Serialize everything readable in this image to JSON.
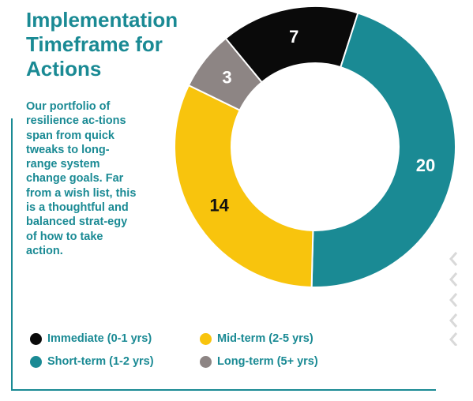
{
  "header": {
    "title": "Implementation Timeframe for Actions",
    "description": "Our portfolio of resilience ac-tions span from quick tweaks to long-range system change goals. Far from a wish list, this is a thoughtful and balanced strat-egy of how to take action."
  },
  "chart_data": {
    "type": "pie",
    "variant": "donut",
    "title": "",
    "categories": [
      "Immediate (0-1 yrs)",
      "Short-term (1-2 yrs)",
      "Mid-term (2-5 yrs)",
      "Long-term (5+ yrs)"
    ],
    "values": [
      7,
      20,
      14,
      3
    ],
    "colors": [
      "#0a0a0a",
      "#1a8a94",
      "#f8c40d",
      "#8d8584"
    ],
    "label_colors": [
      "#ffffff",
      "#ffffff",
      "#111111",
      "#ffffff"
    ],
    "legend": {
      "placement": "bottom-left",
      "order": [
        "Immediate (0-1 yrs)",
        "Mid-term (2-5 yrs)",
        "Short-term (1-2 yrs)",
        "Long-term (5+ yrs)"
      ]
    }
  },
  "theme": {
    "accent": "#1a8a94",
    "chevron_color": "#d9d9d9"
  }
}
